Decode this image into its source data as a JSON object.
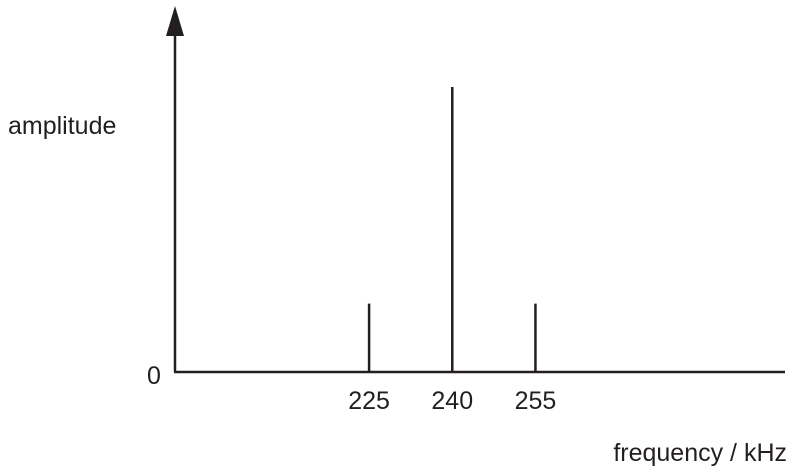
{
  "chart_data": {
    "type": "bar",
    "title": "",
    "xlabel": "frequency / kHz",
    "ylabel": "amplitude",
    "y_origin_label": "0",
    "x": [
      225,
      240,
      255
    ],
    "tick_labels": [
      "225",
      "240",
      "255"
    ],
    "values": [
      0.24,
      1.0,
      0.24
    ],
    "xlim": [
      190,
      300
    ],
    "ylim": [
      0,
      1.2
    ],
    "grid": false,
    "legend": "none",
    "line_color": "#231f20"
  }
}
